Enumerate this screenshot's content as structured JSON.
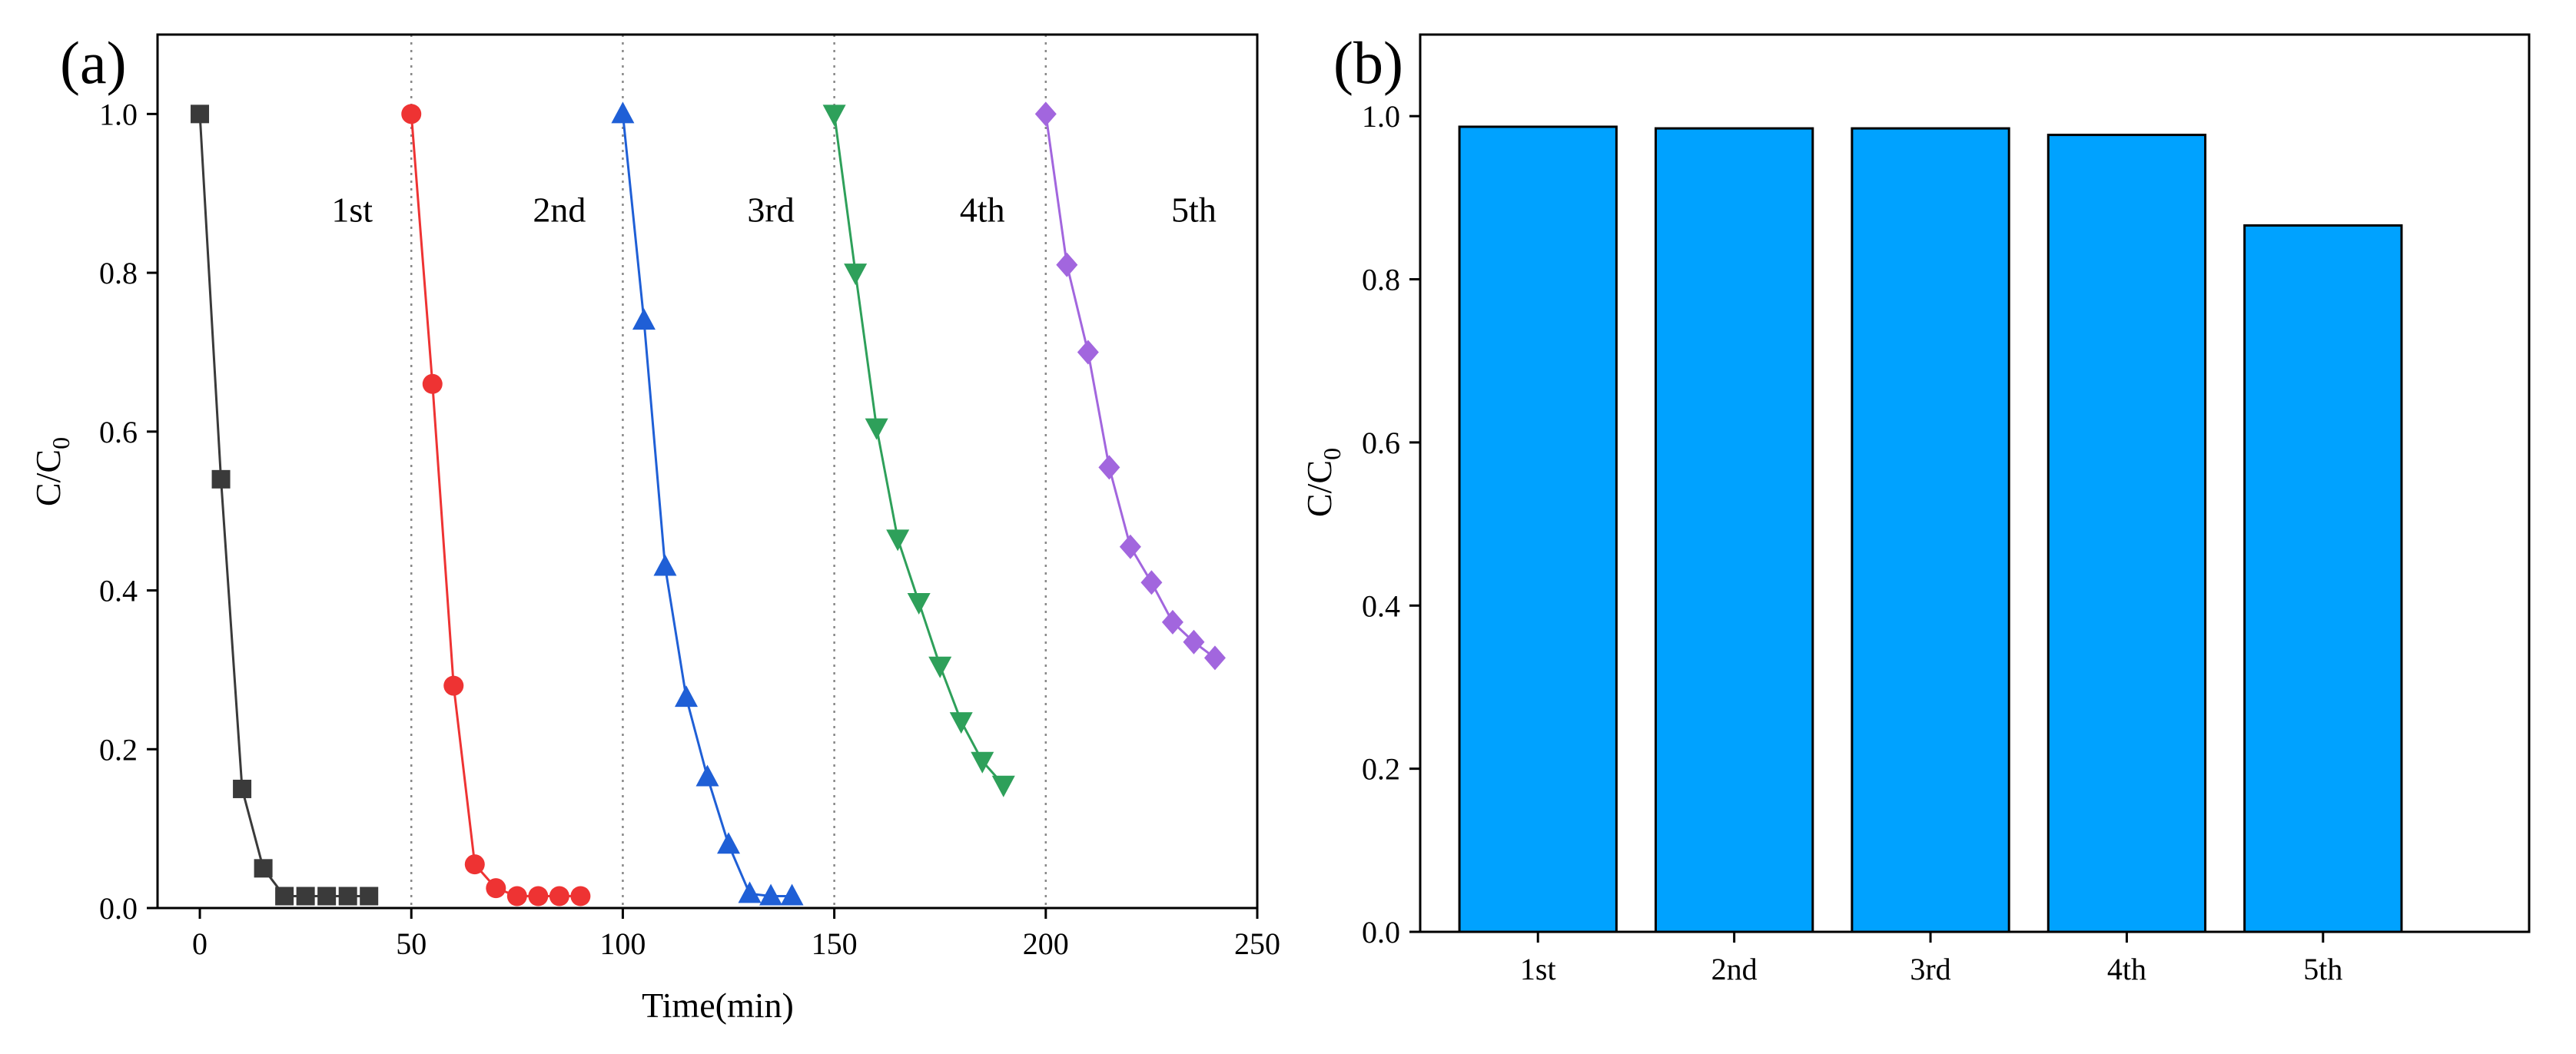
{
  "chart_data": [
    {
      "panel": "(a)",
      "type": "line",
      "xlabel": "Time(min)",
      "ylabel_main": "C/C",
      "ylabel_sub": "0",
      "xlim": [
        -10,
        250
      ],
      "ylim": [
        0,
        1.1
      ],
      "x_ticks": [
        0,
        50,
        100,
        150,
        200,
        250
      ],
      "y_ticks": [
        0.0,
        0.2,
        0.4,
        0.6,
        0.8,
        1.0
      ],
      "dividers": [
        50,
        100,
        150,
        200
      ],
      "cycle_labels": [
        {
          "text": "1st",
          "x": 36,
          "y": 0.88
        },
        {
          "text": "2nd",
          "x": 85,
          "y": 0.88
        },
        {
          "text": "3rd",
          "x": 135,
          "y": 0.88
        },
        {
          "text": "4th",
          "x": 185,
          "y": 0.88
        },
        {
          "text": "5th",
          "x": 235,
          "y": 0.88
        }
      ],
      "series": [
        {
          "name": "1st",
          "color": "#3a3a3a",
          "marker": "square",
          "x": [
            0,
            5,
            10,
            15,
            20,
            25,
            30,
            35,
            40
          ],
          "y": [
            1.0,
            0.54,
            0.15,
            0.05,
            0.015,
            0.015,
            0.015,
            0.015,
            0.015
          ]
        },
        {
          "name": "2nd",
          "color": "#ee3333",
          "marker": "circle",
          "x": [
            50,
            55,
            60,
            65,
            70,
            75,
            80,
            85,
            90
          ],
          "y": [
            1.0,
            0.66,
            0.28,
            0.055,
            0.025,
            0.015,
            0.015,
            0.015,
            0.015
          ]
        },
        {
          "name": "3rd",
          "color": "#1f5fd6",
          "marker": "triangle-up",
          "x": [
            100,
            105,
            110,
            115,
            120,
            125,
            130,
            135,
            140
          ],
          "y": [
            1.0,
            0.74,
            0.43,
            0.265,
            0.165,
            0.08,
            0.018,
            0.015,
            0.015
          ]
        },
        {
          "name": "4th",
          "color": "#2ea05a",
          "marker": "triangle-down",
          "x": [
            150,
            155,
            160,
            165,
            170,
            175,
            180,
            185,
            190
          ],
          "y": [
            1.0,
            0.8,
            0.605,
            0.465,
            0.385,
            0.305,
            0.235,
            0.185,
            0.155
          ]
        },
        {
          "name": "5th",
          "color": "#a266de",
          "marker": "diamond",
          "x": [
            200,
            205,
            210,
            215,
            220,
            225,
            230,
            235,
            240
          ],
          "y": [
            1.0,
            0.81,
            0.7,
            0.555,
            0.455,
            0.41,
            0.36,
            0.335,
            0.315
          ]
        }
      ]
    },
    {
      "panel": "(b)",
      "type": "bar",
      "ylabel_main": "C/C",
      "ylabel_sub": "0",
      "xlabel": "",
      "ylim": [
        0,
        1.1
      ],
      "y_ticks": [
        0.0,
        0.2,
        0.4,
        0.6,
        0.8,
        1.0
      ],
      "categories": [
        "1st",
        "2nd",
        "3rd",
        "4th",
        "5th"
      ],
      "values": [
        0.987,
        0.985,
        0.985,
        0.977,
        0.866
      ],
      "bar_color": "#00a2ff"
    }
  ]
}
